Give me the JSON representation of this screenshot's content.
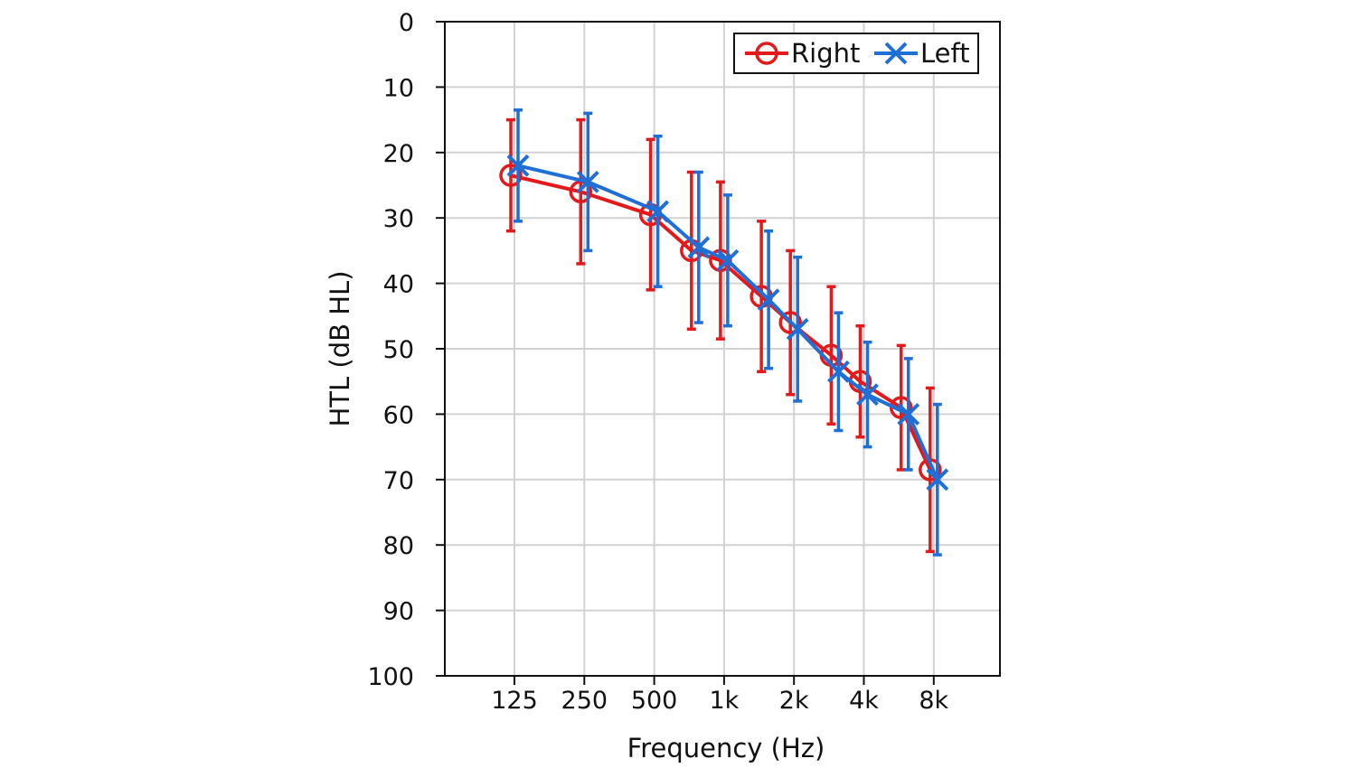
{
  "chart_data": {
    "type": "line",
    "xlabel": "Frequency (Hz)",
    "ylabel": "HTL (dB HL)",
    "x_tick_labels": [
      "125",
      "250",
      "500",
      "1k",
      "2k",
      "4k",
      "8k"
    ],
    "x_ticks_hz": [
      125,
      250,
      500,
      1000,
      2000,
      4000,
      8000
    ],
    "y_ticks": [
      0,
      10,
      20,
      30,
      40,
      50,
      60,
      70,
      80,
      90,
      100
    ],
    "ylim": [
      0,
      100
    ],
    "y_inverted": true,
    "x_scale": "log",
    "grid": true,
    "legend": {
      "position": "top-right",
      "entries": [
        "Right",
        "Left"
      ]
    },
    "frequencies_hz": [
      125,
      250,
      500,
      750,
      1000,
      1500,
      2000,
      3000,
      4000,
      6000,
      8000
    ],
    "series": [
      {
        "name": "Right",
        "marker": "circle",
        "color": "#e31a1c",
        "values": [
          23.5,
          26,
          29.5,
          35,
          36.5,
          42,
          46,
          51,
          55,
          59,
          68.5
        ],
        "error": [
          8.5,
          11,
          11.5,
          12,
          12,
          11.5,
          11,
          10.5,
          8.5,
          9.5,
          12.5
        ]
      },
      {
        "name": "Left",
        "marker": "x",
        "color": "#1f6fd6",
        "values": [
          22,
          24.5,
          29,
          34.5,
          36.5,
          42.5,
          47,
          53.5,
          57,
          60,
          70
        ],
        "error": [
          8.5,
          10.5,
          11.5,
          11.5,
          10,
          10.5,
          11,
          9,
          8,
          8.5,
          11.5
        ]
      }
    ]
  }
}
